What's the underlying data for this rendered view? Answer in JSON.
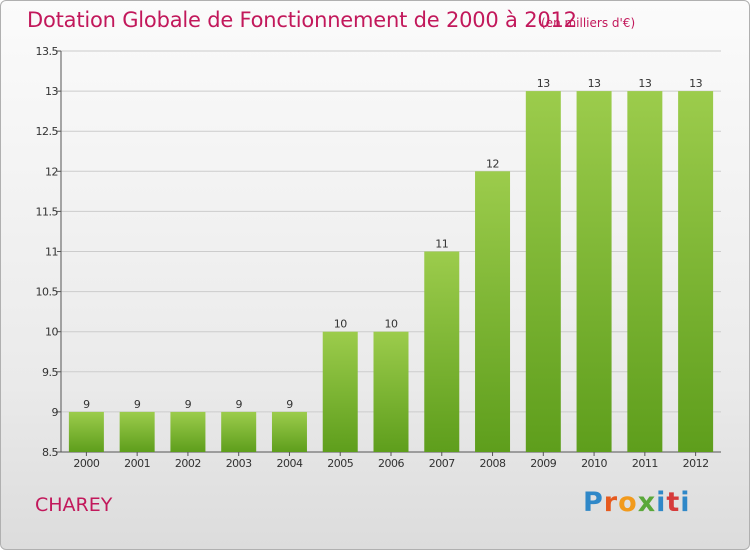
{
  "title": "Dotation Globale de Fonctionnement de 2000 à 2012",
  "subtitle": "(en milliers d'€)",
  "commune": "CHAREY",
  "brand": {
    "letters": [
      "P",
      "r",
      "o",
      "x",
      "i",
      "t",
      "i"
    ]
  },
  "colors": {
    "bar_top": "#9ccc4c",
    "bar_bottom": "#5e9e1c",
    "title": "#c2185b",
    "grid": "#cccccc"
  },
  "chart_data": {
    "type": "bar",
    "title": "Dotation Globale de Fonctionnement de 2000 à 2012",
    "subtitle": "(en milliers d'€)",
    "xlabel": "",
    "ylabel": "",
    "categories": [
      "2000",
      "2001",
      "2002",
      "2003",
      "2004",
      "2005",
      "2006",
      "2007",
      "2008",
      "2009",
      "2010",
      "2011",
      "2012"
    ],
    "values": [
      9,
      9,
      9,
      9,
      9,
      10,
      10,
      11,
      12,
      13,
      13,
      13,
      13
    ],
    "ylim": [
      8.5,
      13.5
    ],
    "yticks": [
      "8.5",
      "9",
      "9.5",
      "10",
      "10.5",
      "11",
      "11.5",
      "12",
      "12.5",
      "13",
      "13.5"
    ],
    "grid": true,
    "legend": "none"
  }
}
